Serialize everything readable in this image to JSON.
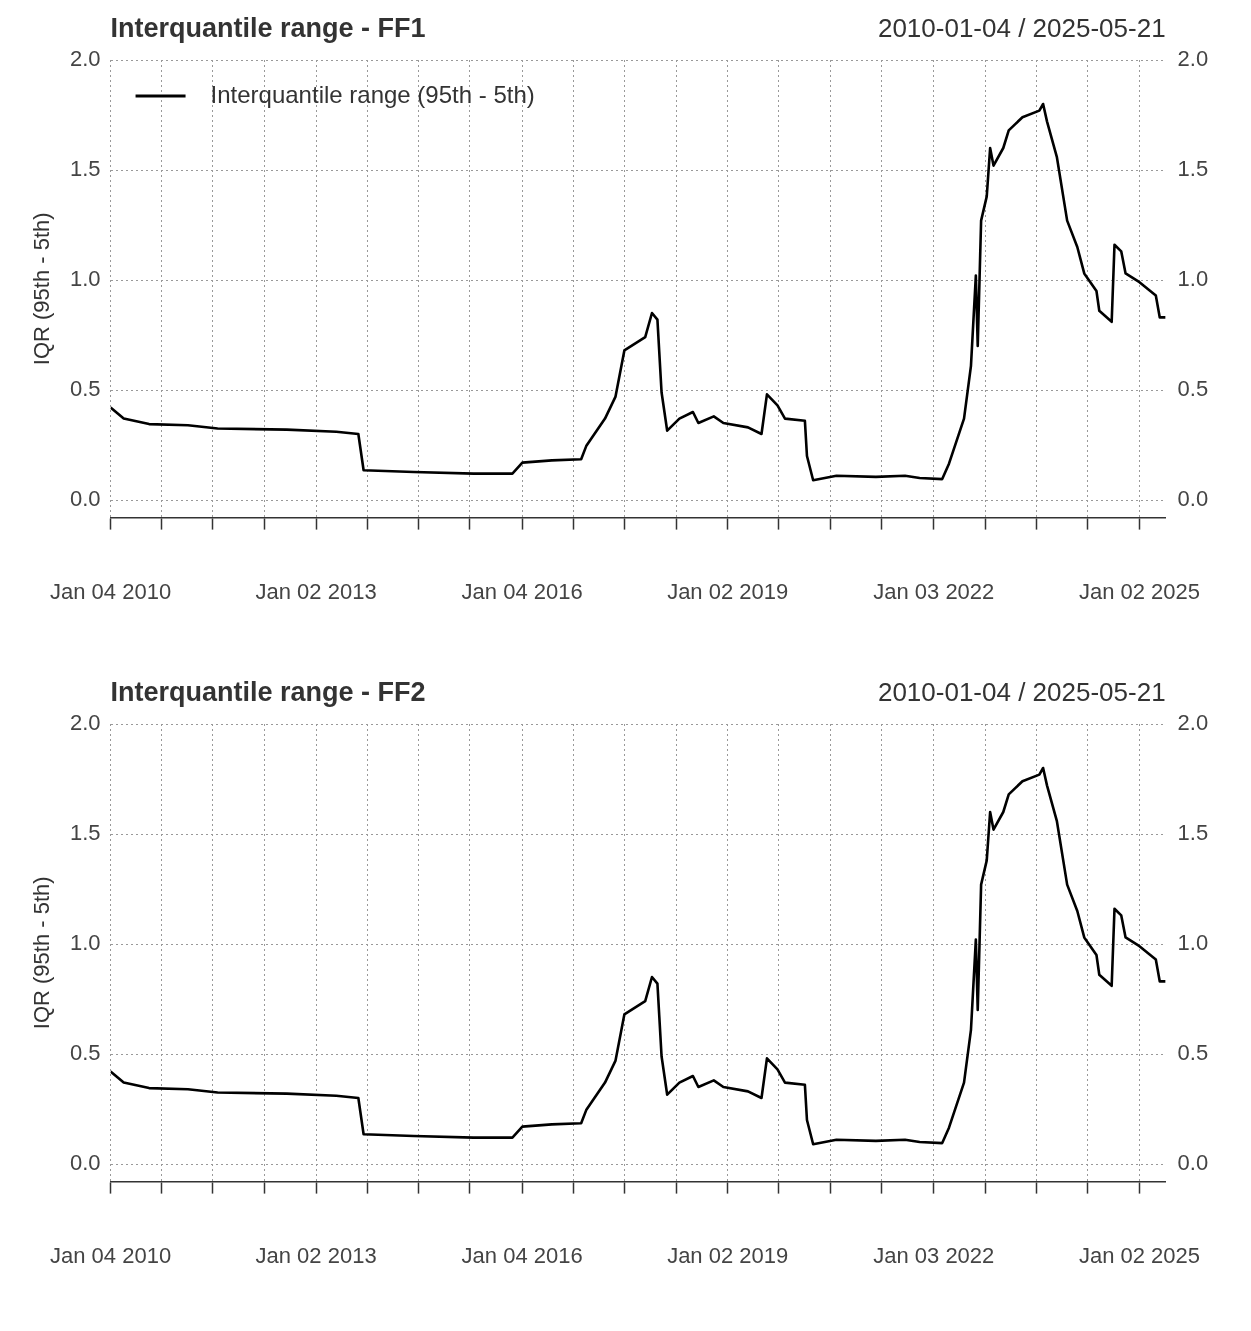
{
  "chart_data": [
    {
      "type": "line",
      "title": "Interquantile range - FF1",
      "subtitle": "2010-01-04 / 2025-05-21",
      "ylabel": "IQR (95th - 5th)",
      "legend": "top left",
      "grid": true,
      "xlim": [
        "2010-01-04",
        "2025-05-21"
      ],
      "xticks": [
        {
          "value": "2010-01-04",
          "label": "Jan 04 2010"
        },
        {
          "value": "2010-10-01",
          "label": null
        },
        {
          "value": "2011-07-01",
          "label": null
        },
        {
          "value": "2012-04-02",
          "label": null
        },
        {
          "value": "2013-01-02",
          "label": "Jan 02 2013"
        },
        {
          "value": "2013-10-01",
          "label": null
        },
        {
          "value": "2014-07-01",
          "label": null
        },
        {
          "value": "2015-04-01",
          "label": null
        },
        {
          "value": "2016-01-04",
          "label": "Jan 04 2016"
        },
        {
          "value": "2016-10-03",
          "label": null
        },
        {
          "value": "2017-07-03",
          "label": null
        },
        {
          "value": "2018-04-02",
          "label": null
        },
        {
          "value": "2019-01-02",
          "label": "Jan 02 2019"
        },
        {
          "value": "2019-10-01",
          "label": null
        },
        {
          "value": "2020-07-01",
          "label": null
        },
        {
          "value": "2021-04-01",
          "label": null
        },
        {
          "value": "2022-01-03",
          "label": "Jan 03 2022"
        },
        {
          "value": "2022-10-03",
          "label": null
        },
        {
          "value": "2023-07-03",
          "label": null
        },
        {
          "value": "2024-04-01",
          "label": null
        },
        {
          "value": "2025-01-02",
          "label": "Jan 02 2025"
        }
      ],
      "ylim": [
        -0.08,
        2
      ],
      "yticks": [
        {
          "value": 0,
          "label": "0.0"
        },
        {
          "value": 0.5,
          "label": "0.5"
        },
        {
          "value": 1,
          "label": "1.0"
        },
        {
          "value": 1.5,
          "label": "1.5"
        },
        {
          "value": 2,
          "label": "2.0"
        }
      ],
      "y2lim": [
        -0.08,
        2
      ],
      "y2ticks": [
        {
          "value": 0,
          "label": "0.0"
        },
        {
          "value": 0.5,
          "label": "0.5"
        },
        {
          "value": 1,
          "label": "1.0"
        },
        {
          "value": 1.5,
          "label": "1.5"
        },
        {
          "value": 2,
          "label": "2.0"
        }
      ],
      "x": [
        "2010-01-04",
        "2010-03-15",
        "2010-07-28",
        "2011-02-20",
        "2011-07-28",
        "2012-07-30",
        "2013-04-20",
        "2013-08-15",
        "2013-09-12",
        "2014-06-06",
        "2015-04-20",
        "2015-11-13",
        "2016-01-05",
        "2016-06-10",
        "2016-11-13",
        "2016-12-10",
        "2017-03-20",
        "2017-05-15",
        "2017-07-01",
        "2017-10-20",
        "2017-11-25",
        "2017-12-24",
        "2018-01-15",
        "2018-02-14",
        "2018-04-20",
        "2018-07-01",
        "2018-07-30",
        "2018-10-20",
        "2018-12-10",
        "2019-04-20",
        "2019-07-01",
        "2019-07-30",
        "2019-09-24",
        "2019-11-03",
        "2020-02-17",
        "2020-02-28",
        "2020-04-01",
        "2020-08-03",
        "2021-03-01",
        "2021-08-03",
        "2021-10-20",
        "2022-02-17",
        "2022-03-25",
        "2022-06-13",
        "2022-07-20",
        "2022-08-15",
        "2022-08-25",
        "2022-09-12",
        "2022-10-12",
        "2022-10-30",
        "2022-11-17",
        "2023-01-08",
        "2023-02-06",
        "2023-04-20",
        "2023-07-19",
        "2023-08-08",
        "2023-08-29",
        "2023-10-20",
        "2023-12-14",
        "2024-02-06",
        "2024-03-14",
        "2024-05-18",
        "2024-06-02",
        "2024-08-07",
        "2024-08-22",
        "2024-09-27",
        "2024-10-20",
        "2025-01-02",
        "2025-03-30",
        "2025-04-20",
        "2025-05-21"
      ],
      "series": [
        {
          "name": "Interquantile range (95th - 5th)",
          "color": "#000000",
          "values": [
            0.42,
            0.37,
            0.345,
            0.34,
            0.325,
            0.32,
            0.31,
            0.3,
            0.135,
            0.127,
            0.12,
            0.12,
            0.17,
            0.18,
            0.185,
            0.245,
            0.37,
            0.47,
            0.68,
            0.74,
            0.85,
            0.82,
            0.49,
            0.315,
            0.37,
            0.4,
            0.35,
            0.38,
            0.35,
            0.33,
            0.3,
            0.48,
            0.43,
            0.37,
            0.36,
            0.2,
            0.09,
            0.11,
            0.105,
            0.11,
            0.1,
            0.095,
            0.165,
            0.37,
            0.61,
            1.02,
            0.7,
            1.27,
            1.38,
            1.6,
            1.52,
            1.6,
            1.68,
            1.74,
            1.77,
            1.8,
            1.72,
            1.56,
            1.27,
            1.15,
            1.03,
            0.95,
            0.86,
            0.81,
            1.16,
            1.13,
            1.03,
            0.99,
            0.93,
            0.83,
            0.83
          ]
        }
      ]
    },
    {
      "type": "line",
      "title": "Interquantile range - FF2",
      "subtitle": "2010-01-04 / 2025-05-21",
      "ylabel": "IQR (95th - 5th)",
      "grid": true,
      "xlim": [
        "2010-01-04",
        "2025-05-21"
      ],
      "xticks": [
        {
          "value": "2010-01-04",
          "label": "Jan 04 2010"
        },
        {
          "value": "2010-10-01",
          "label": null
        },
        {
          "value": "2011-07-01",
          "label": null
        },
        {
          "value": "2012-04-02",
          "label": null
        },
        {
          "value": "2013-01-02",
          "label": "Jan 02 2013"
        },
        {
          "value": "2013-10-01",
          "label": null
        },
        {
          "value": "2014-07-01",
          "label": null
        },
        {
          "value": "2015-04-01",
          "label": null
        },
        {
          "value": "2016-01-04",
          "label": "Jan 04 2016"
        },
        {
          "value": "2016-10-03",
          "label": null
        },
        {
          "value": "2017-07-03",
          "label": null
        },
        {
          "value": "2018-04-02",
          "label": null
        },
        {
          "value": "2019-01-02",
          "label": "Jan 02 2019"
        },
        {
          "value": "2019-10-01",
          "label": null
        },
        {
          "value": "2020-07-01",
          "label": null
        },
        {
          "value": "2021-04-01",
          "label": null
        },
        {
          "value": "2022-01-03",
          "label": "Jan 03 2022"
        },
        {
          "value": "2022-10-03",
          "label": null
        },
        {
          "value": "2023-07-03",
          "label": null
        },
        {
          "value": "2024-04-01",
          "label": null
        },
        {
          "value": "2025-01-02",
          "label": "Jan 02 2025"
        }
      ],
      "ylim": [
        -0.08,
        2
      ],
      "yticks": [
        {
          "value": 0,
          "label": "0.0"
        },
        {
          "value": 0.5,
          "label": "0.5"
        },
        {
          "value": 1,
          "label": "1.0"
        },
        {
          "value": 1.5,
          "label": "1.5"
        },
        {
          "value": 2,
          "label": "2.0"
        }
      ],
      "y2lim": [
        -0.08,
        2
      ],
      "y2ticks": [
        {
          "value": 0,
          "label": "0.0"
        },
        {
          "value": 0.5,
          "label": "0.5"
        },
        {
          "value": 1,
          "label": "1.0"
        },
        {
          "value": 1.5,
          "label": "1.5"
        },
        {
          "value": 2,
          "label": "2.0"
        }
      ],
      "x": [
        "2010-01-04",
        "2010-03-15",
        "2010-07-28",
        "2011-02-20",
        "2011-07-28",
        "2012-07-30",
        "2013-04-20",
        "2013-08-15",
        "2013-09-12",
        "2014-06-06",
        "2015-04-20",
        "2015-11-13",
        "2016-01-05",
        "2016-06-10",
        "2016-11-13",
        "2016-12-10",
        "2017-03-20",
        "2017-05-15",
        "2017-07-01",
        "2017-10-20",
        "2017-11-25",
        "2017-12-24",
        "2018-01-15",
        "2018-02-14",
        "2018-04-20",
        "2018-07-01",
        "2018-07-30",
        "2018-10-20",
        "2018-12-10",
        "2019-04-20",
        "2019-07-01",
        "2019-07-30",
        "2019-09-24",
        "2019-11-03",
        "2020-02-17",
        "2020-02-28",
        "2020-04-01",
        "2020-08-03",
        "2021-03-01",
        "2021-08-03",
        "2021-10-20",
        "2022-02-17",
        "2022-03-25",
        "2022-06-13",
        "2022-07-20",
        "2022-08-15",
        "2022-08-25",
        "2022-09-12",
        "2022-10-12",
        "2022-10-30",
        "2022-11-17",
        "2023-01-08",
        "2023-02-06",
        "2023-04-20",
        "2023-07-19",
        "2023-08-08",
        "2023-08-29",
        "2023-10-20",
        "2023-12-14",
        "2024-02-06",
        "2024-03-14",
        "2024-05-18",
        "2024-06-02",
        "2024-08-07",
        "2024-08-22",
        "2024-09-27",
        "2024-10-20",
        "2025-01-02",
        "2025-03-30",
        "2025-04-20",
        "2025-05-21"
      ],
      "series": [
        {
          "color": "#000000",
          "values": [
            0.42,
            0.37,
            0.345,
            0.34,
            0.325,
            0.32,
            0.31,
            0.3,
            0.135,
            0.127,
            0.12,
            0.12,
            0.17,
            0.18,
            0.185,
            0.245,
            0.37,
            0.47,
            0.68,
            0.74,
            0.85,
            0.82,
            0.49,
            0.315,
            0.37,
            0.4,
            0.35,
            0.38,
            0.35,
            0.33,
            0.3,
            0.48,
            0.43,
            0.37,
            0.36,
            0.2,
            0.09,
            0.11,
            0.105,
            0.11,
            0.1,
            0.095,
            0.165,
            0.37,
            0.61,
            1.02,
            0.7,
            1.27,
            1.38,
            1.6,
            1.52,
            1.6,
            1.68,
            1.74,
            1.77,
            1.8,
            1.72,
            1.56,
            1.27,
            1.15,
            1.03,
            0.95,
            0.86,
            0.81,
            1.16,
            1.13,
            1.03,
            0.99,
            0.93,
            0.83,
            0.83
          ]
        }
      ]
    }
  ]
}
